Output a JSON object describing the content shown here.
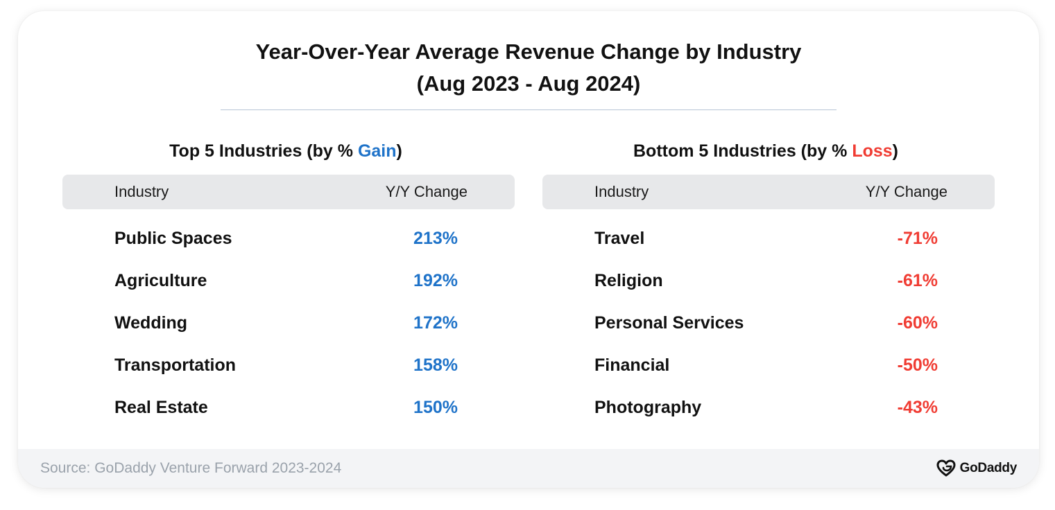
{
  "title": {
    "line1": "Year-Over-Year Average Revenue Change by Industry",
    "line2": "(Aug 2023 - Aug 2024)"
  },
  "top": {
    "heading_prefix": "Top 5 Industries (by % ",
    "heading_highlight": "Gain",
    "heading_suffix": ")",
    "col_industry": "Industry",
    "col_change": "Y/Y Change",
    "rows": [
      {
        "industry": "Public Spaces",
        "change": "213%"
      },
      {
        "industry": "Agriculture",
        "change": "192%"
      },
      {
        "industry": "Wedding",
        "change": "172%"
      },
      {
        "industry": "Transportation",
        "change": "158%"
      },
      {
        "industry": "Real Estate",
        "change": "150%"
      }
    ]
  },
  "bottom": {
    "heading_prefix": "Bottom 5 Industries (by % ",
    "heading_highlight": "Loss",
    "heading_suffix": ")",
    "col_industry": "Industry",
    "col_change": "Y/Y Change",
    "rows": [
      {
        "industry": "Travel",
        "change": "-71%"
      },
      {
        "industry": "Religion",
        "change": "-61%"
      },
      {
        "industry": "Personal Services",
        "change": "-60%"
      },
      {
        "industry": "Financial",
        "change": "-50%"
      },
      {
        "industry": "Photography",
        "change": "-43%"
      }
    ]
  },
  "footer": {
    "source": "Source: GoDaddy Venture Forward 2023-2024",
    "logo_text": "GoDaddy",
    "logo_icon": "godaddy-logo-icon"
  },
  "colors": {
    "gain": "#1f73c9",
    "loss": "#f03c33",
    "header_bg": "#e7e8ea",
    "footer_bg": "#f3f4f6"
  }
}
